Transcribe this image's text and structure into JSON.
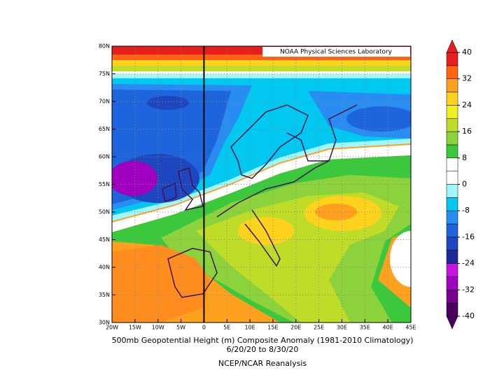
{
  "map": {
    "header": "NOAA Physical Sciences Laboratory",
    "lat_labels": [
      "80N",
      "75N",
      "70N",
      "65N",
      "60N",
      "55N",
      "50N",
      "45N",
      "40N",
      "35N",
      "30N"
    ],
    "lon_labels": [
      "20W",
      "15W",
      "10W",
      "5W",
      "0",
      "5E",
      "10E",
      "15E",
      "20E",
      "25E",
      "30E",
      "35E",
      "40E",
      "45E"
    ],
    "title": "500mb Geopotential Height (m) Composite Anomaly (1981-2010 Climatology)",
    "dates": "6/20/20  to 8/30/20",
    "source": "NCEP/NCAR Reanalysis"
  },
  "colorbar": {
    "clim": [
      -40,
      40
    ],
    "ticks": [
      40,
      32,
      24,
      16,
      8,
      0,
      -8,
      -16,
      -24,
      -32,
      -40
    ],
    "colors": [
      "#4b0060",
      "#780090",
      "#a000c0",
      "#c814e0",
      "#1e2896",
      "#1e46be",
      "#1e64dc",
      "#288cf0",
      "#00c8f0",
      "#a0f5ff",
      "#ffffff",
      "#ffffff",
      "#3cc83c",
      "#8cd23c",
      "#bedc28",
      "#f0f01e",
      "#ffd21e",
      "#ffa01e",
      "#ff6414",
      "#e61e1e"
    ]
  }
}
